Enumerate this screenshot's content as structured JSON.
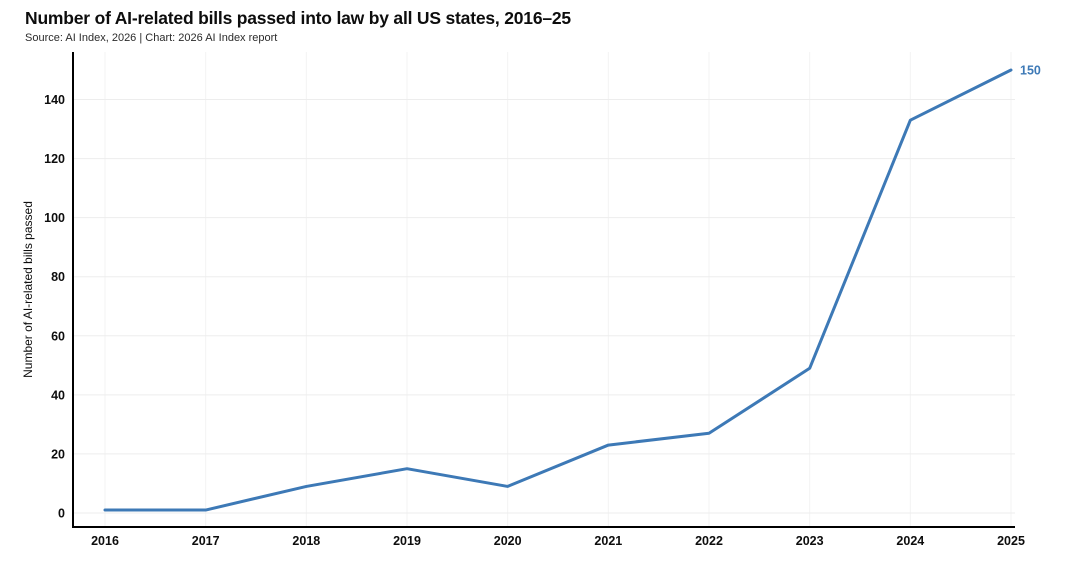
{
  "header": {
    "title": "Number of AI-related bills passed into law by all US states, 2016–25",
    "subtitle": "Source: AI Index, 2026 | Chart: 2026 AI Index report"
  },
  "chart_data": {
    "type": "line",
    "title": "Number of AI-related bills passed into law by all US states, 2016–25",
    "subtitle": "Source: AI Index, 2026 | Chart: 2026 AI Index report",
    "categories": [
      "2016",
      "2017",
      "2018",
      "2019",
      "2020",
      "2021",
      "2022",
      "2023",
      "2024",
      "2025"
    ],
    "series": [
      {
        "name": "AI-related bills passed into law",
        "values": [
          1,
          1,
          9,
          15,
          9,
          23,
          27,
          49,
          133,
          150
        ]
      }
    ],
    "xlabel": "",
    "ylabel": "Number of AI-related bills passed",
    "yticks": [
      0,
      20,
      40,
      60,
      80,
      100,
      120,
      140
    ],
    "ylim": [
      0,
      150
    ],
    "grid": true,
    "legend_position": "none",
    "end_label": "150",
    "colors": {
      "line": "#3D79B6",
      "end_label": "#3D79B6",
      "axis": "#000000",
      "grid_horizontal": "#ededed",
      "grid_vertical": "#f3f3f3",
      "text": "#0d0d0d"
    }
  }
}
